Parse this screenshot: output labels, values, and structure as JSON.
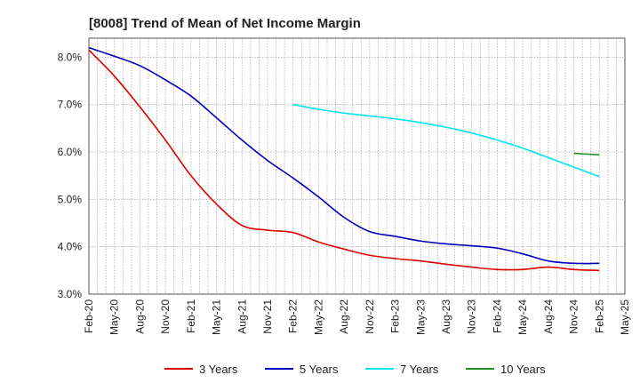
{
  "chart_data": {
    "type": "line",
    "title": "[8008]  Trend of Mean of Net Income Margin",
    "xlabel": "",
    "ylabel": "",
    "ylim": [
      3.0,
      8.4
    ],
    "y_ticks": [
      "3.0%",
      "4.0%",
      "5.0%",
      "6.0%",
      "7.0%",
      "8.0%"
    ],
    "y_tick_values": [
      3.0,
      4.0,
      5.0,
      6.0,
      7.0,
      8.0
    ],
    "x_ticks": [
      "Feb-20",
      "May-20",
      "Aug-20",
      "Nov-20",
      "Feb-21",
      "May-21",
      "Aug-21",
      "Nov-21",
      "Feb-22",
      "May-22",
      "Aug-22",
      "Nov-22",
      "Feb-23",
      "May-23",
      "Aug-23",
      "Nov-23",
      "Feb-24",
      "May-24",
      "Aug-24",
      "Nov-24",
      "Feb-25",
      "May-25"
    ],
    "grid": true,
    "legend_position": "bottom",
    "series": [
      {
        "name": "3 Years",
        "color": "#dd0000",
        "points": [
          [
            0,
            8.15
          ],
          [
            3,
            7.6
          ],
          [
            6,
            6.95
          ],
          [
            9,
            6.25
          ],
          [
            12,
            5.5
          ],
          [
            15,
            4.9
          ],
          [
            18,
            4.45
          ],
          [
            21,
            4.35
          ],
          [
            24,
            4.3
          ],
          [
            27,
            4.1
          ],
          [
            30,
            3.95
          ],
          [
            33,
            3.82
          ],
          [
            36,
            3.75
          ],
          [
            39,
            3.7
          ],
          [
            42,
            3.63
          ],
          [
            45,
            3.57
          ],
          [
            48,
            3.52
          ],
          [
            51,
            3.52
          ],
          [
            54,
            3.57
          ],
          [
            57,
            3.52
          ],
          [
            60,
            3.5
          ]
        ]
      },
      {
        "name": "5 Years",
        "color": "#0000bb",
        "points": [
          [
            0,
            8.2
          ],
          [
            3,
            8.02
          ],
          [
            6,
            7.82
          ],
          [
            9,
            7.52
          ],
          [
            12,
            7.18
          ],
          [
            15,
            6.72
          ],
          [
            18,
            6.25
          ],
          [
            21,
            5.82
          ],
          [
            24,
            5.45
          ],
          [
            27,
            5.05
          ],
          [
            30,
            4.62
          ],
          [
            33,
            4.32
          ],
          [
            36,
            4.22
          ],
          [
            39,
            4.12
          ],
          [
            42,
            4.06
          ],
          [
            45,
            4.02
          ],
          [
            48,
            3.97
          ],
          [
            51,
            3.85
          ],
          [
            54,
            3.7
          ],
          [
            57,
            3.65
          ],
          [
            60,
            3.65
          ]
        ]
      },
      {
        "name": "7 Years",
        "color": "#00e5ee",
        "points": [
          [
            24,
            7.0
          ],
          [
            27,
            6.9
          ],
          [
            30,
            6.82
          ],
          [
            33,
            6.76
          ],
          [
            36,
            6.7
          ],
          [
            39,
            6.62
          ],
          [
            42,
            6.52
          ],
          [
            45,
            6.4
          ],
          [
            48,
            6.25
          ],
          [
            51,
            6.08
          ],
          [
            54,
            5.88
          ],
          [
            57,
            5.68
          ],
          [
            60,
            5.48
          ]
        ]
      },
      {
        "name": "10 Years",
        "color": "#228b22",
        "points": [
          [
            57,
            5.97
          ],
          [
            58,
            5.96
          ],
          [
            60,
            5.94
          ]
        ]
      }
    ]
  }
}
